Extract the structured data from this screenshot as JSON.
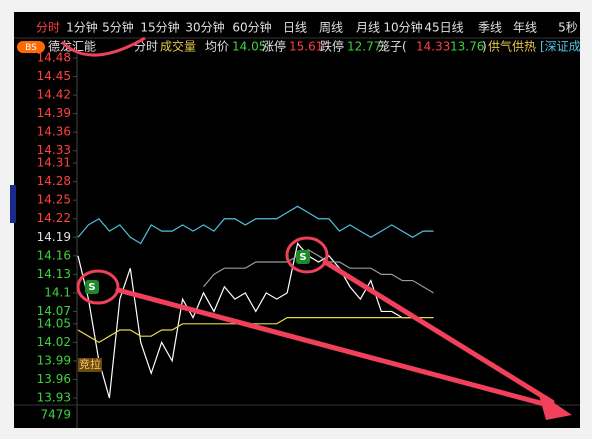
{
  "toolbar": [
    "分时",
    "1分钟",
    "5分钟",
    "15分钟",
    "30分钟",
    "60分钟",
    "日线",
    "周线",
    "月线",
    "10分钟",
    "45日线",
    "季线",
    "年线",
    "5秒"
  ],
  "info": {
    "badge": "BS",
    "name": "德龙汇能",
    "mode": "分时",
    "volume": "成交量",
    "avg_label": "均价",
    "avg": 14.05,
    "limit_up_label": "涨停",
    "limit_up": 15.61,
    "limit_down_label": "跌停",
    "limit_down": 12.77,
    "cage_label": "笼子(",
    "cage_high": 14.33,
    "cage_low": 13.76,
    "cage_close": ")",
    "sector": "供气供热",
    "index": "[深证成"
  },
  "signals": [
    "S",
    "S"
  ],
  "auction_label": "竞拉",
  "volume_label": "7479",
  "chart_data": {
    "type": "line",
    "categories": [
      null,
      null,
      null,
      null,
      null,
      null,
      null,
      null,
      null,
      null,
      null,
      null,
      null,
      null,
      null,
      null,
      null,
      null,
      null,
      null,
      null,
      null,
      null,
      null,
      null,
      null,
      null,
      null,
      null,
      null,
      null,
      null,
      null,
      null,
      null,
      null,
      null,
      null,
      null,
      null,
      null,
      null,
      null,
      null,
      null,
      null,
      null,
      null
    ],
    "ylim": [
      13.93,
      14.48
    ],
    "yticks": [
      14.48,
      14.45,
      14.42,
      14.39,
      14.36,
      14.33,
      14.31,
      14.28,
      14.25,
      14.22,
      14.19,
      14.16,
      14.13,
      14.1,
      14.07,
      14.05,
      14.02,
      13.99,
      13.96,
      13.93
    ],
    "series": [
      {
        "color": "#ffffff",
        "values": [
          14.16,
          14.09,
          13.99,
          13.93,
          14.09,
          14.14,
          14.02,
          13.97,
          14.02,
          13.99,
          14.09,
          14.06,
          14.1,
          14.07,
          14.11,
          14.09,
          14.1,
          14.07,
          14.1,
          14.09,
          14.1,
          14.18,
          14.16,
          14.15,
          14.16,
          14.14,
          14.11,
          14.09,
          14.12,
          14.07,
          14.07,
          14.06,
          14.06,
          14.05,
          14.04,
          null,
          null,
          null,
          null,
          null,
          null,
          null,
          null,
          null,
          null,
          null,
          null,
          null
        ]
      },
      {
        "color": "#e6d84a",
        "values": [
          14.04,
          14.03,
          14.02,
          14.03,
          14.04,
          14.04,
          14.03,
          14.03,
          14.04,
          14.04,
          14.05,
          14.05,
          14.05,
          14.05,
          14.05,
          14.05,
          14.05,
          14.05,
          14.05,
          14.05,
          14.06,
          14.06,
          14.06,
          14.06,
          14.06,
          14.06,
          14.06,
          14.06,
          14.06,
          14.06,
          14.06,
          14.06,
          14.06,
          14.06,
          14.06,
          null,
          null,
          null,
          null,
          null,
          null,
          null,
          null,
          null,
          null,
          null,
          null,
          null
        ]
      },
      {
        "color": "#4fc3e0",
        "values": [
          14.19,
          14.21,
          14.22,
          14.2,
          14.21,
          14.19,
          14.18,
          14.21,
          14.2,
          14.2,
          14.21,
          14.2,
          14.21,
          14.2,
          14.22,
          14.22,
          14.21,
          14.22,
          14.22,
          14.22,
          14.23,
          14.24,
          14.23,
          14.22,
          14.22,
          14.2,
          14.21,
          14.2,
          14.19,
          14.2,
          14.21,
          14.2,
          14.19,
          14.2,
          14.2,
          null,
          null,
          null,
          null,
          null,
          null,
          null,
          null,
          null,
          null,
          null,
          null,
          null
        ]
      },
      {
        "color": "#9a9a9a",
        "values": [
          null,
          null,
          null,
          null,
          null,
          null,
          null,
          null,
          null,
          null,
          null,
          null,
          14.11,
          14.13,
          14.14,
          14.14,
          14.14,
          14.15,
          14.15,
          14.15,
          14.15,
          14.16,
          14.17,
          14.16,
          14.15,
          14.15,
          14.14,
          14.14,
          14.14,
          14.13,
          14.13,
          14.12,
          14.12,
          14.11,
          14.1,
          null,
          null,
          null,
          null,
          null,
          null,
          null,
          null,
          null,
          null,
          null,
          null,
          null
        ]
      }
    ]
  }
}
